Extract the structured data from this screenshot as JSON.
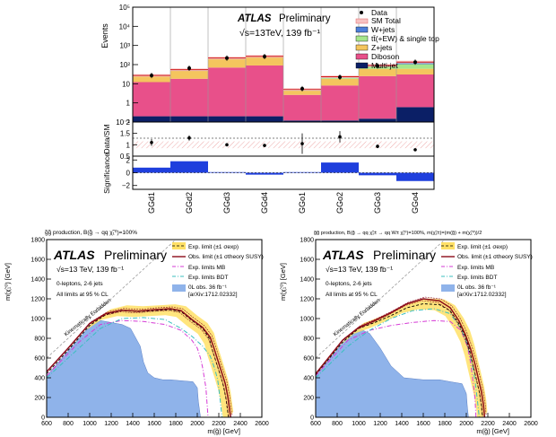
{
  "colors": {
    "wjets": "#4d7fd9",
    "ttbar": "#a6e68c",
    "zjets": "#f4c55e",
    "diboson": "#e8508a",
    "multijet": "#0b1f66",
    "data": "#000000",
    "band": "#f29999",
    "yellow": "#ffe066",
    "obs": "#8b0a1a",
    "mb": "#d63bd6",
    "bdt": "#3bbfbf",
    "excluded": "#8fb3ea",
    "kin": "#9a9a9a"
  },
  "chart_data": [
    {
      "id": "top",
      "type": "bar",
      "stacked": true,
      "atlas": "ATLAS",
      "atlas_suffix": "Preliminary",
      "energy_label": "√s=13TeV, 139 fb⁻¹",
      "ylabel": "Events",
      "ylim": [
        0.1,
        100000
      ],
      "ylog": true,
      "yticks": [
        "10⁻¹",
        "1",
        "10",
        "10²",
        "10³",
        "10⁴",
        "10⁵"
      ],
      "categories": [
        "GGd1",
        "GGd2",
        "GGd3",
        "GGd4",
        "GGo1",
        "GGo2",
        "GGo3",
        "GGo4"
      ],
      "legend": [
        "Data",
        "SM Total",
        "W+jets",
        "tt̄(+EW) & single top",
        "Z+jets",
        "Diboson",
        "Multi-jet"
      ],
      "series": [
        {
          "name": "Multi-jet",
          "key": "multijet",
          "values": [
            0.2,
            0.2,
            0.2,
            0.2,
            0.12,
            0.12,
            0.15,
            0.6
          ]
        },
        {
          "name": "Diboson",
          "key": "diboson",
          "values": [
            12,
            18,
            70,
            90,
            2.5,
            8,
            25,
            30
          ]
        },
        {
          "name": "Z+jets",
          "key": "zjets",
          "values": [
            13,
            30,
            130,
            160,
            1.8,
            10,
            35,
            30
          ]
        },
        {
          "name": "tt̄(+EW) & single top",
          "key": "ttbar",
          "values": [
            1,
            3,
            8,
            10,
            0.3,
            3,
            20,
            45
          ]
        },
        {
          "name": "W+jets",
          "key": "wjets",
          "values": [
            1,
            3,
            12,
            10,
            0.3,
            2,
            10,
            30
          ]
        }
      ],
      "data_points": [
        27,
        65,
        220,
        265,
        5.5,
        22,
        85,
        135
      ],
      "ratio": {
        "ylabel": "Data/SM",
        "ylim": [
          0.5,
          2.0
        ],
        "yticks": [
          "0.5",
          "1",
          "1.5",
          "2"
        ],
        "values": [
          1.1,
          1.3,
          1.0,
          0.97,
          1.05,
          1.35,
          0.93,
          0.78
        ],
        "errors": [
          0.15,
          0.12,
          0.05,
          0.04,
          0.45,
          0.25,
          0.08,
          0.06
        ]
      },
      "significance": {
        "ylabel": "Significance",
        "ylim": [
          -2.6,
          2.6
        ],
        "yticks": [
          "−2",
          "0",
          "2"
        ],
        "values": [
          0.8,
          1.8,
          0.1,
          -0.3,
          0.1,
          1.6,
          -0.4,
          -1.3
        ]
      }
    },
    {
      "id": "left",
      "type": "line",
      "header": "g̃g̃ production, B(g̃ → qq χ̃₁⁰)=100%",
      "atlas": "ATLAS",
      "atlas_suffix": "Preliminary",
      "energy_label": "√s=13 TeV, 139 fb⁻¹",
      "info": [
        "0-leptons, 2-6 jets",
        "All limits at 95 % CL"
      ],
      "xlabel": "m(g̃) [GeV]",
      "ylabel": "m(χ̃₁⁰) [GeV]",
      "xlim": [
        600,
        2600
      ],
      "ylim": [
        0,
        1800
      ],
      "xticks": [
        600,
        800,
        1000,
        1200,
        1400,
        1600,
        1800,
        2000,
        2200,
        2400,
        2600
      ],
      "yticks": [
        0,
        200,
        400,
        600,
        800,
        1000,
        1200,
        1400,
        1600,
        1800
      ],
      "legend": [
        "Exp. limit (±1 σexp)",
        "Obs. limit (±1 σtheory SUSY)",
        "Exp. limits MB",
        "Exp. limits BDT",
        "0L obs. 36 fb⁻¹",
        "[arXiv:1712.02332]"
      ],
      "forbidden_label": "Kinematically Forbidden",
      "exp": [
        [
          600,
          440
        ],
        [
          800,
          680
        ],
        [
          1000,
          930
        ],
        [
          1150,
          1040
        ],
        [
          1300,
          1080
        ],
        [
          1450,
          1070
        ],
        [
          1600,
          1080
        ],
        [
          1750,
          1090
        ],
        [
          1850,
          1070
        ],
        [
          1950,
          980
        ],
        [
          2050,
          900
        ],
        [
          2110,
          800
        ],
        [
          2140,
          680
        ],
        [
          2175,
          560
        ],
        [
          2210,
          440
        ],
        [
          2240,
          330
        ],
        [
          2265,
          200
        ],
        [
          2280,
          80
        ],
        [
          2290,
          0
        ]
      ],
      "obs": [
        [
          600,
          460
        ],
        [
          800,
          700
        ],
        [
          1000,
          950
        ],
        [
          1150,
          1050
        ],
        [
          1300,
          1085
        ],
        [
          1450,
          1075
        ],
        [
          1600,
          1090
        ],
        [
          1750,
          1100
        ],
        [
          1850,
          1080
        ],
        [
          1950,
          990
        ],
        [
          2050,
          910
        ],
        [
          2120,
          810
        ],
        [
          2155,
          700
        ],
        [
          2190,
          580
        ],
        [
          2225,
          460
        ],
        [
          2260,
          340
        ],
        [
          2285,
          200
        ],
        [
          2300,
          80
        ],
        [
          2310,
          0
        ]
      ],
      "mb": [
        [
          600,
          420
        ],
        [
          900,
          760
        ],
        [
          1100,
          940
        ],
        [
          1300,
          980
        ],
        [
          1500,
          970
        ],
        [
          1700,
          940
        ],
        [
          1850,
          880
        ],
        [
          1950,
          780
        ],
        [
          2000,
          700
        ],
        [
          2030,
          600
        ],
        [
          2050,
          500
        ],
        [
          2080,
          300
        ],
        [
          2100,
          0
        ]
      ],
      "bdt": [
        [
          600,
          400
        ],
        [
          900,
          700
        ],
        [
          1100,
          900
        ],
        [
          1300,
          1000
        ],
        [
          1500,
          1010
        ],
        [
          1700,
          990
        ],
        [
          1850,
          900
        ],
        [
          1950,
          820
        ],
        [
          2050,
          720
        ],
        [
          2120,
          620
        ],
        [
          2160,
          500
        ],
        [
          2190,
          380
        ],
        [
          2210,
          200
        ],
        [
          2230,
          0
        ]
      ],
      "excluded": [
        [
          600,
          420
        ],
        [
          1000,
          920
        ],
        [
          1100,
          980
        ],
        [
          1200,
          960
        ],
        [
          1300,
          940
        ],
        [
          1380,
          900
        ],
        [
          1400,
          860
        ],
        [
          1470,
          720
        ],
        [
          1500,
          560
        ],
        [
          1540,
          450
        ],
        [
          1600,
          400
        ],
        [
          1680,
          380
        ],
        [
          1750,
          380
        ],
        [
          1850,
          370
        ],
        [
          1960,
          360
        ],
        [
          2000,
          300
        ],
        [
          2010,
          160
        ],
        [
          2030,
          0
        ]
      ]
    },
    {
      "id": "right",
      "type": "line",
      "header": "g̃g̃ production, B(g̃ → qq χ̃₁± → qq W± χ̃₁⁰)=100%, m(χ̃₁±)=(m(g̃) + m(χ̃₁⁰))/2",
      "atlas": "ATLAS",
      "atlas_suffix": "Preliminary",
      "energy_label": "√s=13 TeV, 139 fb⁻¹",
      "info": [
        "0-leptons, 2-6 jets",
        "All limits at 95 % CL"
      ],
      "xlabel": "m(g̃) [GeV]",
      "ylabel": "m(χ̃₁⁰) [GeV]",
      "xlim": [
        600,
        2600
      ],
      "ylim": [
        0,
        1800
      ],
      "xticks": [
        600,
        800,
        1000,
        1200,
        1400,
        1600,
        1800,
        2000,
        2200,
        2400,
        2600
      ],
      "yticks": [
        0,
        200,
        400,
        600,
        800,
        1000,
        1200,
        1400,
        1600,
        1800
      ],
      "legend": [
        "Exp. limit (±1 σexp)",
        "Obs. limit (±1 σtheory SUSY)",
        "Exp. limits MB",
        "Exp. limits BDT",
        "0L obs. 36 fb⁻¹",
        "[arXiv:1712.02332]"
      ],
      "forbidden_label": "Kinematically Forbidden",
      "exp": [
        [
          600,
          430
        ],
        [
          850,
          760
        ],
        [
          1000,
          900
        ],
        [
          1150,
          960
        ],
        [
          1300,
          1030
        ],
        [
          1450,
          1110
        ],
        [
          1600,
          1150
        ],
        [
          1750,
          1140
        ],
        [
          1850,
          1080
        ],
        [
          1930,
          950
        ],
        [
          1990,
          820
        ],
        [
          2030,
          680
        ],
        [
          2060,
          540
        ],
        [
          2090,
          400
        ],
        [
          2120,
          260
        ],
        [
          2140,
          120
        ],
        [
          2150,
          0
        ]
      ],
      "obs": [
        [
          600,
          440
        ],
        [
          850,
          780
        ],
        [
          1000,
          910
        ],
        [
          1150,
          980
        ],
        [
          1300,
          1060
        ],
        [
          1450,
          1150
        ],
        [
          1600,
          1200
        ],
        [
          1750,
          1180
        ],
        [
          1850,
          1110
        ],
        [
          1930,
          980
        ],
        [
          1990,
          840
        ],
        [
          2040,
          690
        ],
        [
          2080,
          540
        ],
        [
          2110,
          400
        ],
        [
          2140,
          260
        ],
        [
          2160,
          120
        ],
        [
          2170,
          0
        ]
      ],
      "mb": [
        [
          600,
          420
        ],
        [
          900,
          780
        ],
        [
          1100,
          880
        ],
        [
          1300,
          930
        ],
        [
          1500,
          960
        ],
        [
          1700,
          980
        ],
        [
          1850,
          970
        ],
        [
          1950,
          880
        ],
        [
          2010,
          720
        ],
        [
          2040,
          550
        ],
        [
          2060,
          380
        ],
        [
          2080,
          200
        ],
        [
          2090,
          0
        ]
      ],
      "bdt": [
        [
          600,
          400
        ],
        [
          900,
          720
        ],
        [
          1100,
          880
        ],
        [
          1300,
          1000
        ],
        [
          1500,
          1080
        ],
        [
          1700,
          1100
        ],
        [
          1850,
          1050
        ],
        [
          1950,
          900
        ],
        [
          2010,
          740
        ],
        [
          2050,
          560
        ],
        [
          2080,
          380
        ],
        [
          2100,
          200
        ],
        [
          2120,
          0
        ]
      ],
      "excluded": [
        [
          600,
          420
        ],
        [
          900,
          820
        ],
        [
          1000,
          900
        ],
        [
          1060,
          870
        ],
        [
          1100,
          850
        ],
        [
          1200,
          700
        ],
        [
          1300,
          520
        ],
        [
          1420,
          400
        ],
        [
          1600,
          380
        ],
        [
          1750,
          380
        ],
        [
          1850,
          360
        ],
        [
          1960,
          340
        ],
        [
          2000,
          240
        ],
        [
          2010,
          100
        ],
        [
          2020,
          0
        ]
      ]
    }
  ]
}
